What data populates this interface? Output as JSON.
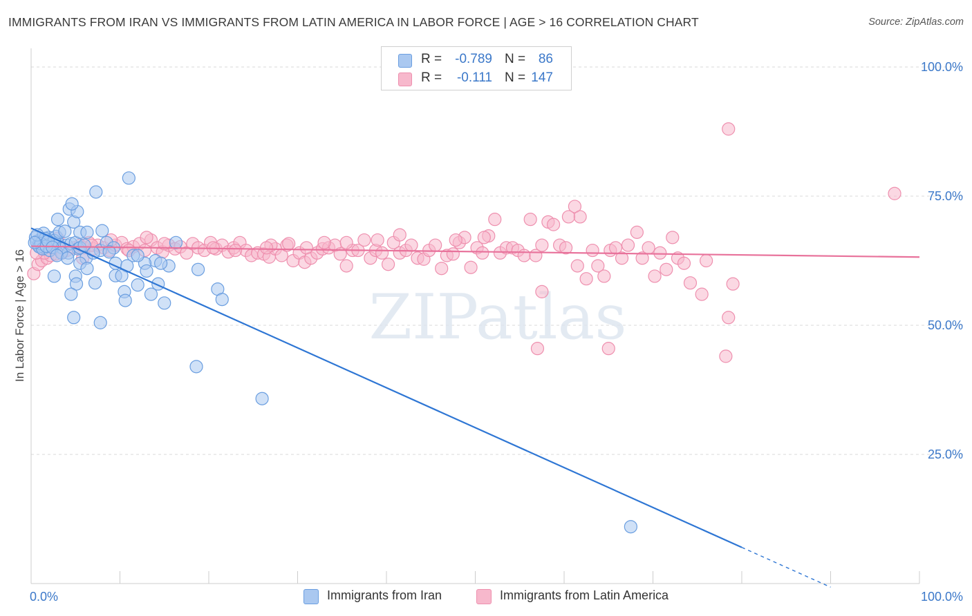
{
  "title": "IMMIGRANTS FROM IRAN VS IMMIGRANTS FROM LATIN AMERICA IN LABOR FORCE | AGE > 16 CORRELATION CHART",
  "source": "Source: ZipAtlas.com",
  "watermark": "ZIPatlas",
  "legend": {
    "rows": [
      {
        "r_label": "R =",
        "r_value": "-0.789",
        "n_label": "N =",
        "n_value": "86"
      },
      {
        "r_label": "R =",
        "r_value": "-0.111",
        "n_label": "N =",
        "n_value": "147"
      }
    ]
  },
  "colors": {
    "blue_fill": "#aac8f0",
    "blue_stroke": "#6a9ee0",
    "blue_line": "#2e76d4",
    "pink_fill": "#f7b8cc",
    "pink_stroke": "#ee8fae",
    "pink_line": "#e8729b",
    "tick_label": "#3b78c9",
    "grid": "#d9d9d9"
  },
  "chart_data": {
    "type": "scatter",
    "title": "IMMIGRANTS FROM IRAN VS IMMIGRANTS FROM LATIN AMERICA IN LABOR FORCE | AGE > 16 CORRELATION CHART",
    "xlabel": "",
    "ylabel": "In Labor Force | Age > 16",
    "xlim": [
      0,
      100
    ],
    "ylim": [
      0,
      102
    ],
    "x_tick_labels": [
      "0.0%",
      "100.0%"
    ],
    "y_ticks": [
      25,
      50,
      75,
      100
    ],
    "y_tick_labels": [
      "25.0%",
      "50.0%",
      "75.0%",
      "100.0%"
    ],
    "grid": true,
    "legend_position": "bottom-center",
    "series": [
      {
        "name": "Immigrants from Iran",
        "color": "#6a9ee0",
        "trend": {
          "x": [
            0,
            80,
            90
          ],
          "y": [
            68.8,
            7,
            -0.7
          ]
        },
        "points": [
          [
            0.5,
            67
          ],
          [
            0.8,
            65.5
          ],
          [
            1.0,
            66.5
          ],
          [
            1.2,
            66
          ],
          [
            1.5,
            65
          ],
          [
            0.6,
            66.2
          ],
          [
            1.8,
            66.5
          ],
          [
            2.0,
            67
          ],
          [
            2.2,
            65.5
          ],
          [
            2.5,
            66
          ],
          [
            1.4,
            67.8
          ],
          [
            2.8,
            67.2
          ],
          [
            0.9,
            65.2
          ],
          [
            1.6,
            66.8
          ],
          [
            3.0,
            66
          ],
          [
            2.6,
            66.4
          ],
          [
            1.1,
            65.8
          ],
          [
            0.7,
            67.5
          ],
          [
            3.2,
            68
          ],
          [
            3.5,
            65
          ],
          [
            1.3,
            64.8
          ],
          [
            2.1,
            64.5
          ],
          [
            1.7,
            65.3
          ],
          [
            4.0,
            65.5
          ],
          [
            4.5,
            65.8
          ],
          [
            5.0,
            66
          ],
          [
            5.3,
            64.8
          ],
          [
            0.4,
            66
          ],
          [
            1.9,
            66.3
          ],
          [
            2.4,
            65.1
          ],
          [
            3.8,
            68.2
          ],
          [
            4.2,
            64
          ],
          [
            5.5,
            65
          ],
          [
            6.0,
            65.5
          ],
          [
            3.0,
            70.5
          ],
          [
            4.8,
            70
          ],
          [
            4.3,
            72.5
          ],
          [
            5.2,
            72
          ],
          [
            4.6,
            73.5
          ],
          [
            7.3,
            75.8
          ],
          [
            11.0,
            78.5
          ],
          [
            5.5,
            68
          ],
          [
            3.4,
            64
          ],
          [
            2.9,
            63.5
          ],
          [
            4.1,
            63
          ],
          [
            6.2,
            63
          ],
          [
            7.8,
            64.5
          ],
          [
            8.5,
            66
          ],
          [
            9.3,
            65
          ],
          [
            8.8,
            64.2
          ],
          [
            7.0,
            64
          ],
          [
            11.5,
            63.5
          ],
          [
            14.0,
            62.5
          ],
          [
            5.5,
            62
          ],
          [
            6.3,
            61
          ],
          [
            9.5,
            62
          ],
          [
            10.8,
            61.5
          ],
          [
            12.8,
            62
          ],
          [
            15.5,
            61.5
          ],
          [
            13.0,
            60.5
          ],
          [
            18.8,
            60.8
          ],
          [
            5.0,
            59.5
          ],
          [
            2.6,
            59.5
          ],
          [
            9.5,
            59.6
          ],
          [
            10.2,
            59.6
          ],
          [
            7.2,
            58.2
          ],
          [
            5.1,
            58
          ],
          [
            12.0,
            57.8
          ],
          [
            14.3,
            58
          ],
          [
            4.5,
            56
          ],
          [
            10.5,
            56.5
          ],
          [
            13.5,
            56
          ],
          [
            21.0,
            57
          ],
          [
            10.6,
            54.8
          ],
          [
            15.0,
            54.3
          ],
          [
            21.5,
            55
          ],
          [
            4.8,
            51.5
          ],
          [
            7.8,
            50.5
          ],
          [
            18.6,
            42
          ],
          [
            26.0,
            35.8
          ],
          [
            6.3,
            68
          ],
          [
            8.0,
            68.3
          ],
          [
            14.6,
            62
          ],
          [
            16.3,
            66
          ],
          [
            12.0,
            63.5
          ],
          [
            67.5,
            11
          ]
        ]
      },
      {
        "name": "Immigrants from Latin America",
        "color": "#ee8fae",
        "trend": {
          "x": [
            0,
            100
          ],
          "y": [
            65.3,
            63.2
          ]
        },
        "points": [
          [
            0.3,
            60
          ],
          [
            0.8,
            61.8
          ],
          [
            1.2,
            62.5
          ],
          [
            1.8,
            63
          ],
          [
            2.2,
            63.5
          ],
          [
            2.8,
            63.8
          ],
          [
            3.5,
            64
          ],
          [
            4.0,
            64.5
          ],
          [
            4.8,
            65
          ],
          [
            5.5,
            65.5
          ],
          [
            6.0,
            65
          ],
          [
            6.5,
            66
          ],
          [
            7.0,
            64.8
          ],
          [
            7.5,
            65.5
          ],
          [
            8.2,
            65
          ],
          [
            8.8,
            64.5
          ],
          [
            9.5,
            65.5
          ],
          [
            10.2,
            66
          ],
          [
            10.8,
            64.8
          ],
          [
            11.5,
            65.2
          ],
          [
            12.2,
            65.8
          ],
          [
            12.8,
            64.5
          ],
          [
            13.5,
            66.5
          ],
          [
            14.2,
            65
          ],
          [
            14.8,
            64.2
          ],
          [
            15.5,
            65.5
          ],
          [
            16.2,
            64.8
          ],
          [
            16.8,
            65.2
          ],
          [
            17.5,
            64
          ],
          [
            18.2,
            65.8
          ],
          [
            18.8,
            65
          ],
          [
            19.5,
            64.5
          ],
          [
            20.2,
            66
          ],
          [
            20.8,
            64.8
          ],
          [
            21.5,
            65.5
          ],
          [
            22.2,
            64.2
          ],
          [
            22.8,
            65
          ],
          [
            23.5,
            66
          ],
          [
            24.2,
            64.5
          ],
          [
            24.8,
            63.5
          ],
          [
            25.5,
            64
          ],
          [
            26.2,
            63.8
          ],
          [
            26.8,
            63.2
          ],
          [
            27.5,
            64.8
          ],
          [
            28.2,
            63.5
          ],
          [
            28.8,
            65.5
          ],
          [
            29.5,
            62.5
          ],
          [
            30.2,
            64
          ],
          [
            30.8,
            62.2
          ],
          [
            31.5,
            63
          ],
          [
            32.2,
            64
          ],
          [
            32.8,
            64.8
          ],
          [
            33.5,
            65
          ],
          [
            34.2,
            65.5
          ],
          [
            34.8,
            63.8
          ],
          [
            35.5,
            61.5
          ],
          [
            36.2,
            64.5
          ],
          [
            36.8,
            64.5
          ],
          [
            37.5,
            66.5
          ],
          [
            38.2,
            63
          ],
          [
            38.8,
            64.5
          ],
          [
            39.5,
            64
          ],
          [
            40.2,
            61.8
          ],
          [
            40.8,
            66
          ],
          [
            41.5,
            64
          ],
          [
            42.2,
            64.5
          ],
          [
            42.8,
            65.5
          ],
          [
            43.5,
            63
          ],
          [
            44.2,
            62.8
          ],
          [
            44.8,
            64.5
          ],
          [
            45.5,
            65.5
          ],
          [
            46.2,
            61
          ],
          [
            46.8,
            63.5
          ],
          [
            47.5,
            63.8
          ],
          [
            48.2,
            66
          ],
          [
            48.8,
            67
          ],
          [
            49.5,
            61.2
          ],
          [
            50.2,
            65
          ],
          [
            50.8,
            64
          ],
          [
            51.5,
            67.3
          ],
          [
            52.2,
            70.5
          ],
          [
            52.8,
            64
          ],
          [
            53.5,
            65
          ],
          [
            54.2,
            65
          ],
          [
            54.8,
            64.5
          ],
          [
            55.5,
            63.5
          ],
          [
            56.2,
            70.5
          ],
          [
            56.8,
            63.5
          ],
          [
            57.5,
            65.5
          ],
          [
            58.2,
            70
          ],
          [
            58.8,
            69.5
          ],
          [
            59.5,
            65.5
          ],
          [
            60.2,
            65
          ],
          [
            61.2,
            73
          ],
          [
            61.8,
            71
          ],
          [
            62.5,
            59
          ],
          [
            63.2,
            64.5
          ],
          [
            63.8,
            61.5
          ],
          [
            64.5,
            59.5
          ],
          [
            65.2,
            64.5
          ],
          [
            65.8,
            65
          ],
          [
            66.5,
            63
          ],
          [
            67.2,
            65.5
          ],
          [
            68.2,
            68
          ],
          [
            68.8,
            63
          ],
          [
            69.5,
            65
          ],
          [
            70.2,
            59.5
          ],
          [
            70.8,
            64
          ],
          [
            71.5,
            60.8
          ],
          [
            72.2,
            67
          ],
          [
            72.8,
            63
          ],
          [
            73.5,
            62
          ],
          [
            74.2,
            58.2
          ],
          [
            75.5,
            56
          ],
          [
            76.0,
            62.5
          ],
          [
            78.5,
            51.5
          ],
          [
            78.2,
            44
          ],
          [
            79.0,
            58
          ],
          [
            97.2,
            75.5
          ],
          [
            78.5,
            88
          ],
          [
            57.5,
            56.5
          ],
          [
            57.0,
            45.5
          ],
          [
            65.0,
            45.5
          ],
          [
            60.5,
            71
          ],
          [
            51.0,
            67
          ],
          [
            47.8,
            66.5
          ],
          [
            41.5,
            67.5
          ],
          [
            39.0,
            66.5
          ],
          [
            35.5,
            66
          ],
          [
            33.0,
            66
          ],
          [
            31.0,
            65
          ],
          [
            29.0,
            65.8
          ],
          [
            27.0,
            65.5
          ],
          [
            23.0,
            64.5
          ],
          [
            20.5,
            65
          ],
          [
            15.0,
            65.8
          ],
          [
            13.0,
            67
          ],
          [
            11.0,
            64.5
          ],
          [
            9.0,
            66.5
          ],
          [
            6.8,
            65.5
          ],
          [
            5.8,
            63
          ],
          [
            3.0,
            66.8
          ],
          [
            2.5,
            65
          ],
          [
            1.5,
            64
          ],
          [
            0.6,
            64
          ],
          [
            61.5,
            61.5
          ],
          [
            26.5,
            65
          ]
        ]
      }
    ]
  }
}
